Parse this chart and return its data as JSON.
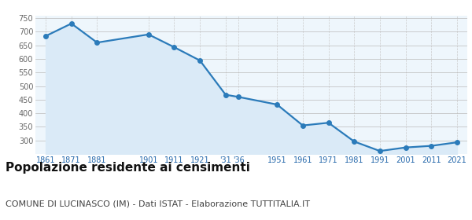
{
  "years": [
    1861,
    1871,
    1881,
    1901,
    1911,
    1921,
    1931,
    1936,
    1951,
    1961,
    1971,
    1981,
    1991,
    2001,
    2011,
    2021
  ],
  "population": [
    684,
    730,
    660,
    690,
    643,
    594,
    468,
    460,
    432,
    355,
    365,
    296,
    261,
    274,
    280,
    293
  ],
  "tick_positions": [
    1861,
    1871,
    1881,
    1901,
    1911,
    1921,
    1931,
    1936,
    1951,
    1961,
    1971,
    1981,
    1991,
    2001,
    2011,
    2021
  ],
  "tick_labels": [
    "1861",
    "1871",
    "1881",
    "1901",
    "1911",
    "1921",
    "'31",
    "'36",
    "1951",
    "1961",
    "1971",
    "1981",
    "1991",
    "2001",
    "2011",
    "2021"
  ],
  "ylim": [
    250,
    760
  ],
  "yticks": [
    300,
    350,
    400,
    450,
    500,
    550,
    600,
    650,
    700,
    750
  ],
  "line_color": "#2b7bba",
  "fill_color": "#daeaf7",
  "marker_color": "#2b7bba",
  "grid_color_h": "#bbbbbb",
  "grid_color_v": "#cccccc",
  "axes_bg_color": "#eef6fc",
  "bg_color": "#ffffff",
  "title": "Popolazione residente ai censimenti",
  "subtitle": "COMUNE DI LUCINASCO (IM) - Dati ISTAT - Elaborazione TUTTITALIA.IT",
  "title_fontsize": 11,
  "subtitle_fontsize": 8,
  "tick_fontsize": 7,
  "ytick_color": "#666666",
  "xtick_color": "#2266aa"
}
